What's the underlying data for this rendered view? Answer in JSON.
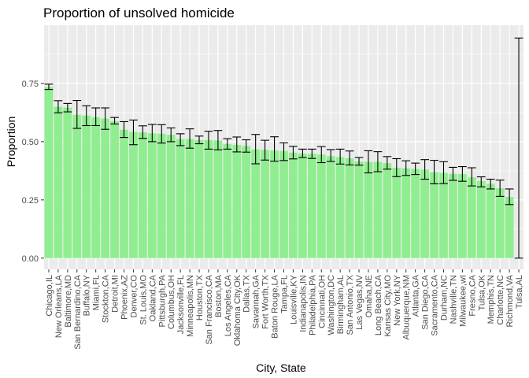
{
  "chart_data": {
    "type": "bar",
    "title": "Proportion of unsolved homicide",
    "xlabel": "City, State",
    "ylabel": "Proportion",
    "ylim": [
      -0.048,
      1.0
    ],
    "yticks": [
      0,
      0.25,
      0.5,
      0.75
    ],
    "ytick_labels": [
      "0.00",
      "0.25",
      "0.50",
      "0.75"
    ],
    "grid": true,
    "bar_color": "#90ee90",
    "panel_color": "#ebebeb",
    "errorbar_color": "#000000",
    "categories": [
      "Chicago,IL",
      "New Orleans,LA",
      "Baltimore,MD",
      "San Bernardino,CA",
      "Buffalo,NY",
      "Miami,FL",
      "Stockton,CA",
      "Detroit,MI",
      "Phoenix,AZ",
      "Denver,CO",
      "St. Louis,MO",
      "Oakland,CA",
      "Pittsburgh,PA",
      "Columbus,OH",
      "Jacksonville,FL",
      "Minneapolis,MN",
      "Houston,TX",
      "San Francisco,CA",
      "Boston,MA",
      "Los Angeles,CA",
      "Oklahoma City,OK",
      "Dallas,TX",
      "Savannah,GA",
      "Fort Worth,TX",
      "Baton Rouge,LA",
      "Tampa,FL",
      "Louisville,KY",
      "Indianapolis,IN",
      "Philadelphia,PA",
      "Cincinnati,OH",
      "Washington,DC",
      "Birmingham,AL",
      "San Antonio,TX",
      "Las Vegas,NV",
      "Omaha,NE",
      "Long Beach,CA",
      "Kansas City,MO",
      "New York,NY",
      "Albuquerque,NM",
      "Atlanta,GA",
      "San Diego,CA",
      "Sacramento,CA",
      "Durham,NC",
      "Nashville,TN",
      "Milwaukee,wI",
      "Fresno,CA",
      "Tulsa,OK",
      "Memphis,TN",
      "Charlotte,NC",
      "Richmond,VA",
      "Tulsa,AL"
    ],
    "values": [
      0.735,
      0.65,
      0.646,
      0.615,
      0.612,
      0.605,
      0.599,
      0.588,
      0.551,
      0.542,
      0.54,
      0.536,
      0.534,
      0.53,
      0.511,
      0.511,
      0.507,
      0.507,
      0.505,
      0.49,
      0.486,
      0.481,
      0.467,
      0.465,
      0.462,
      0.46,
      0.453,
      0.449,
      0.448,
      0.445,
      0.438,
      0.434,
      0.429,
      0.415,
      0.413,
      0.413,
      0.408,
      0.388,
      0.386,
      0.383,
      0.38,
      0.369,
      0.366,
      0.362,
      0.361,
      0.347,
      0.331,
      0.319,
      0.3,
      0.263,
      0.0
    ],
    "ci_low": [
      0.724,
      0.624,
      0.628,
      0.557,
      0.569,
      0.569,
      0.553,
      0.576,
      0.518,
      0.487,
      0.514,
      0.5,
      0.494,
      0.5,
      0.483,
      0.472,
      0.491,
      0.468,
      0.465,
      0.468,
      0.456,
      0.455,
      0.405,
      0.421,
      0.416,
      0.419,
      0.426,
      0.432,
      0.428,
      0.41,
      0.415,
      0.404,
      0.4,
      0.399,
      0.366,
      0.371,
      0.382,
      0.35,
      0.355,
      0.359,
      0.339,
      0.319,
      0.32,
      0.334,
      0.33,
      0.31,
      0.306,
      0.297,
      0.265,
      0.23,
      0.0
    ],
    "ci_high": [
      0.747,
      0.676,
      0.664,
      0.677,
      0.654,
      0.645,
      0.645,
      0.604,
      0.586,
      0.593,
      0.568,
      0.574,
      0.573,
      0.559,
      0.534,
      0.555,
      0.524,
      0.545,
      0.548,
      0.513,
      0.52,
      0.508,
      0.531,
      0.506,
      0.521,
      0.495,
      0.48,
      0.468,
      0.468,
      0.479,
      0.466,
      0.468,
      0.46,
      0.432,
      0.461,
      0.457,
      0.436,
      0.427,
      0.418,
      0.408,
      0.423,
      0.42,
      0.414,
      0.39,
      0.393,
      0.388,
      0.349,
      0.339,
      0.335,
      0.297,
      0.945
    ]
  }
}
